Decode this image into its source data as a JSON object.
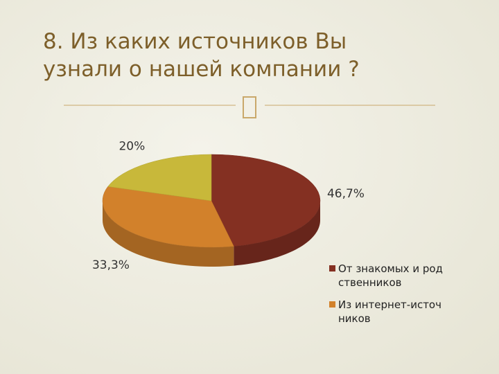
{
  "chart_data": {
    "type": "pie",
    "title": "8. Из каких источников Вы узнали о нашей компании ?",
    "categories": [
      "От знакомых и родственников",
      "Из интернет-источников",
      null
    ],
    "values": [
      46.7,
      33.3,
      20
    ],
    "value_labels": [
      "46,7%",
      "33,3%",
      "20%"
    ],
    "colors": [
      "#843022",
      "#d2812b",
      "#c8b83a"
    ],
    "legend": "right"
  }
}
